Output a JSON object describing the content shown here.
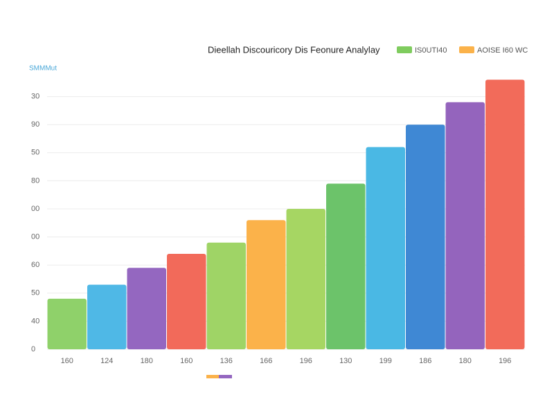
{
  "chart_data": {
    "type": "bar",
    "title": "Dieellah Discouricory Dis Feonure Analylay",
    "y_label": "SMMMut",
    "legend": [
      {
        "name": "IS0UTI40",
        "color": "#7fcc5e"
      },
      {
        "name": "AOISE I60 WC",
        "color": "#fbb24a"
      }
    ],
    "categories": [
      "160",
      "124",
      "180",
      "160",
      "136",
      "166",
      "196",
      "130",
      "199",
      "186",
      "180",
      "196"
    ],
    "values": [
      18,
      23,
      29,
      34,
      38,
      46,
      50,
      59,
      72,
      80,
      88,
      96
    ],
    "colors": [
      "#8fd16a",
      "#4fb8e6",
      "#9467c0",
      "#f26a5a",
      "#9fd466",
      "#fbb24a",
      "#a6d663",
      "#6cc36a",
      "#4ab8e4",
      "#3f88d4",
      "#9464bd",
      "#f26b5a"
    ],
    "ylim": [
      0,
      100
    ],
    "yticks": [
      0,
      {
        "value": 10,
        "label": "40"
      },
      {
        "value": 20,
        "label": "50"
      },
      {
        "value": 30,
        "label": "60"
      },
      {
        "value": 40,
        "label": "00"
      },
      {
        "value": 50,
        "label": "00"
      },
      {
        "value": 60,
        "label": "80"
      },
      {
        "value": 70,
        "label": "50"
      },
      {
        "value": 80,
        "label": "90"
      },
      {
        "value": 90,
        "label": "30"
      }
    ],
    "grid": true
  }
}
